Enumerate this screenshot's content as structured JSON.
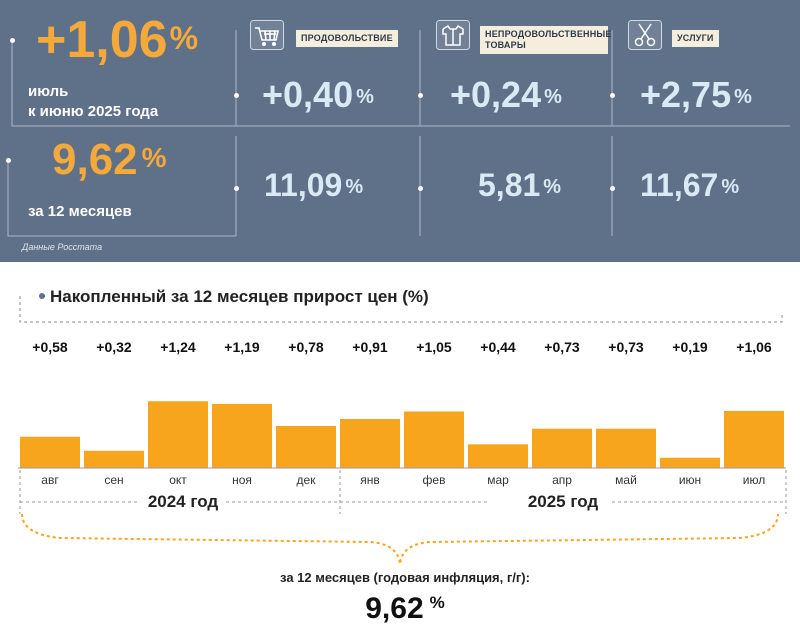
{
  "colors": {
    "panel": "#5f7089",
    "accent": "#f4a93a",
    "bar": "#f7a51c",
    "light_blue": "#d9eaf5"
  },
  "header": {
    "monthly": {
      "value": "+1,06",
      "unit": "%",
      "line1": "июль",
      "line2": "к июню 2025 года"
    },
    "annual": {
      "value": "9,62",
      "unit": "%",
      "label": "за 12 месяцев"
    },
    "source": "Данные Росстата"
  },
  "categories": [
    {
      "icon": "shopping-cart-icon",
      "label": "ПРОДОВОЛЬСТВИЕ",
      "monthly": "+0,40",
      "annual": "11,09",
      "unit": "%"
    },
    {
      "icon": "clothing-icon",
      "label": "НЕПРОДОВОЛЬСТВЕННЫЕ ТОВАРЫ",
      "monthly": "+0,24",
      "annual": "5,81",
      "unit": "%"
    },
    {
      "icon": "scissors-icon",
      "label": "УСЛУГИ",
      "monthly": "+2,75",
      "annual": "11,67",
      "unit": "%"
    }
  ],
  "chart_data": {
    "type": "bar",
    "title": "Накопленный за 12 месяцев прирост цен (%)",
    "categories": [
      "авг",
      "сен",
      "окт",
      "ноя",
      "дек",
      "янв",
      "фев",
      "мар",
      "апр",
      "май",
      "июн",
      "июл"
    ],
    "values": [
      0.58,
      0.32,
      1.24,
      1.19,
      0.78,
      0.91,
      1.05,
      0.44,
      0.73,
      0.73,
      0.19,
      1.06
    ],
    "value_labels": [
      "+0,58",
      "+0,32",
      "+1,24",
      "+1,19",
      "+0,78",
      "+0,91",
      "+1,05",
      "+0,44",
      "+0,73",
      "+0,73",
      "+0,19",
      "+1,06"
    ],
    "year_groups": [
      {
        "label": "2024 год",
        "months": [
          "авг",
          "сен",
          "окт",
          "ноя",
          "дек"
        ]
      },
      {
        "label": "2025 год",
        "months": [
          "янв",
          "фев",
          "мар",
          "апр",
          "май",
          "июн",
          "июл"
        ]
      }
    ],
    "ylim": [
      0,
      1.3
    ]
  },
  "summary": {
    "label": "за 12 месяцев (годовая инфляция, г/г):",
    "value": "9,62",
    "unit": "%"
  }
}
